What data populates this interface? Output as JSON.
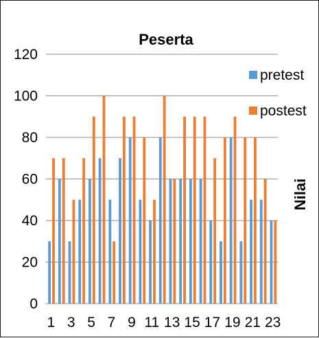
{
  "chart_data": {
    "type": "bar",
    "title": "Peserta",
    "xlabel": "",
    "ylabel": "Nilai",
    "ylim": [
      0,
      120
    ],
    "yticks": [
      0,
      20,
      40,
      60,
      80,
      100,
      120
    ],
    "grid": true,
    "legend_position": "right",
    "categories": [
      "1",
      "2",
      "3",
      "4",
      "5",
      "6",
      "7",
      "8",
      "9",
      "10",
      "11",
      "12",
      "13",
      "14",
      "15",
      "16",
      "17",
      "18",
      "19",
      "20",
      "21",
      "22",
      "23"
    ],
    "xtick_labels": [
      "1",
      "3",
      "5",
      "7",
      "9",
      "11",
      "13",
      "15",
      "17",
      "19",
      "21",
      "23"
    ],
    "series": [
      {
        "name": "pretest",
        "color": "#5b9bd5",
        "values": [
          30,
          60,
          30,
          50,
          60,
          70,
          50,
          70,
          80,
          50,
          40,
          80,
          60,
          60,
          60,
          60,
          40,
          30,
          80,
          30,
          50,
          50,
          40
        ]
      },
      {
        "name": "postest",
        "color": "#ed7d31",
        "values": [
          70,
          70,
          50,
          70,
          90,
          100,
          30,
          90,
          90,
          80,
          50,
          100,
          60,
          90,
          90,
          90,
          70,
          80,
          90,
          80,
          80,
          60,
          40
        ]
      }
    ]
  }
}
